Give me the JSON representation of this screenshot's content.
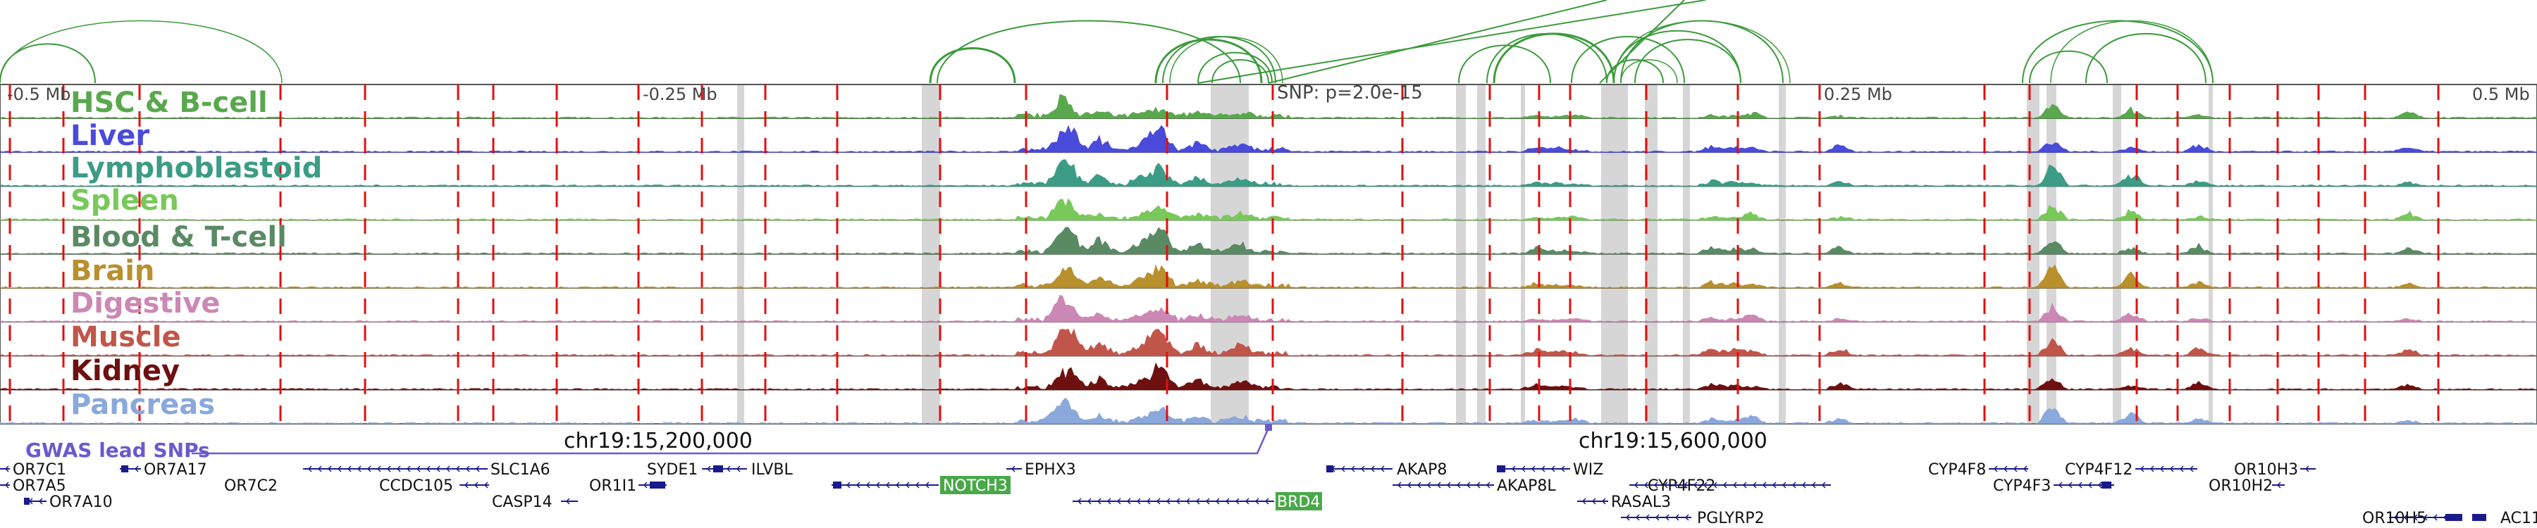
{
  "scale_labels": [
    "-0.5 Mb",
    "-0.25 Mb",
    "0.25 Mb",
    "0.5 Mb"
  ],
  "snp_label": "SNP: p=2.0e-15",
  "tracks": [
    {
      "name": "HSC & B-cell",
      "color": "#5aa84e"
    },
    {
      "name": "Liver",
      "color": "#4a4adb"
    },
    {
      "name": "Lymphoblastoid",
      "color": "#3c9c86"
    },
    {
      "name": "Spleen",
      "color": "#78c85a"
    },
    {
      "name": "Blood & T-cell",
      "color": "#5a8a64"
    },
    {
      "name": "Brain",
      "color": "#b8902e"
    },
    {
      "name": "Digestive",
      "color": "#cc88b4"
    },
    {
      "name": "Muscle",
      "color": "#c0564a"
    },
    {
      "name": "Kidney",
      "color": "#6e1010"
    },
    {
      "name": "Pancreas",
      "color": "#8aa8dc"
    }
  ],
  "gwas_label": "GWAS lead SNPs",
  "gwas_color": "#6a5acd",
  "coord_labels": [
    "chr19:15,200,000",
    "chr19:15,600,000"
  ],
  "genes": [
    {
      "name": "OR7C1"
    },
    {
      "name": "OR7A5"
    },
    {
      "name": "OR7A10"
    },
    {
      "name": "OR7A17"
    },
    {
      "name": "OR7C2"
    },
    {
      "name": "SLC1A6"
    },
    {
      "name": "CCDC105"
    },
    {
      "name": "CASP14"
    },
    {
      "name": "SYDE1"
    },
    {
      "name": "ILVBL"
    },
    {
      "name": "OR1I1"
    },
    {
      "name": "NOTCH3",
      "highlight": true
    },
    {
      "name": "EPHX3"
    },
    {
      "name": "BRD4",
      "highlight": true
    },
    {
      "name": "AKAP8"
    },
    {
      "name": "AKAP8L"
    },
    {
      "name": "WIZ"
    },
    {
      "name": "CYP4F22"
    },
    {
      "name": "RASAL3"
    },
    {
      "name": "PGLYRP2"
    },
    {
      "name": "CYP4F8"
    },
    {
      "name": "CYP4F12"
    },
    {
      "name": "OR10H3"
    },
    {
      "name": "CYP4F3"
    },
    {
      "name": "OR10H2"
    },
    {
      "name": "OR10H5"
    },
    {
      "name": "AC11"
    }
  ],
  "colors": {
    "arc": "#3c9a3c",
    "red_line": "#e01010",
    "highlight_band": "#d6d6d6",
    "gene": "#1a1a8a",
    "gene_highlight_fill": "#4aa84a"
  }
}
